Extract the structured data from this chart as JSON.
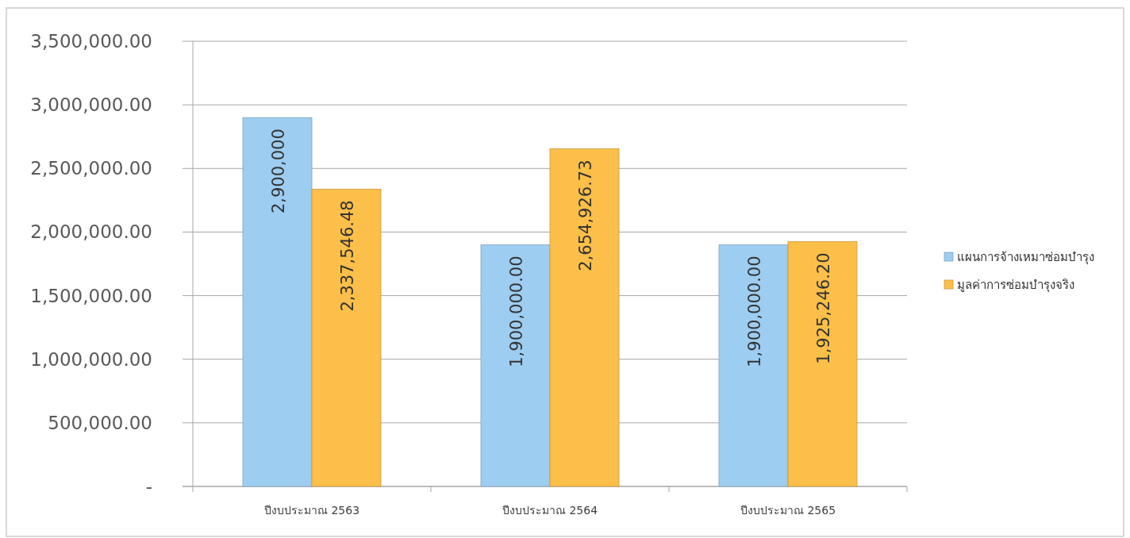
{
  "chart_data": {
    "type": "bar",
    "categories": [
      "ปีงบประมาณ 2563",
      "ปีงบประมาณ 2564",
      "ปีงบประมาณ 2565"
    ],
    "series": [
      {
        "name": "แผนการจ้างเหมาซ่อมบำรุง",
        "color": "#9dcdf0",
        "values": [
          2900000,
          1900000,
          1900000
        ],
        "value_labels": [
          "2,900,000",
          "1,900,000.00",
          "1,900,000.00"
        ]
      },
      {
        "name": "มูลค่าการซ่อมบำรุงจริง",
        "color": "#fbbf4a",
        "values": [
          2337546.48,
          2654926.73,
          1925246.2
        ],
        "value_labels": [
          "2,337,546.48",
          "2,654,926.73",
          "1,925,246.20"
        ]
      }
    ],
    "ylim": [
      0,
      3500000
    ],
    "yticks": [
      {
        "value": 0,
        "label": "-"
      },
      {
        "value": 500000,
        "label": "500,000.00"
      },
      {
        "value": 1000000,
        "label": "1,000,000.00"
      },
      {
        "value": 1500000,
        "label": "1,500,000.00"
      },
      {
        "value": 2000000,
        "label": "2,000,000.00"
      },
      {
        "value": 2500000,
        "label": "2,500,000.00"
      },
      {
        "value": 3000000,
        "label": "3,000,000.00"
      },
      {
        "value": 3500000,
        "label": "3,500,000.00"
      }
    ],
    "grid": "y",
    "legend": "right"
  }
}
